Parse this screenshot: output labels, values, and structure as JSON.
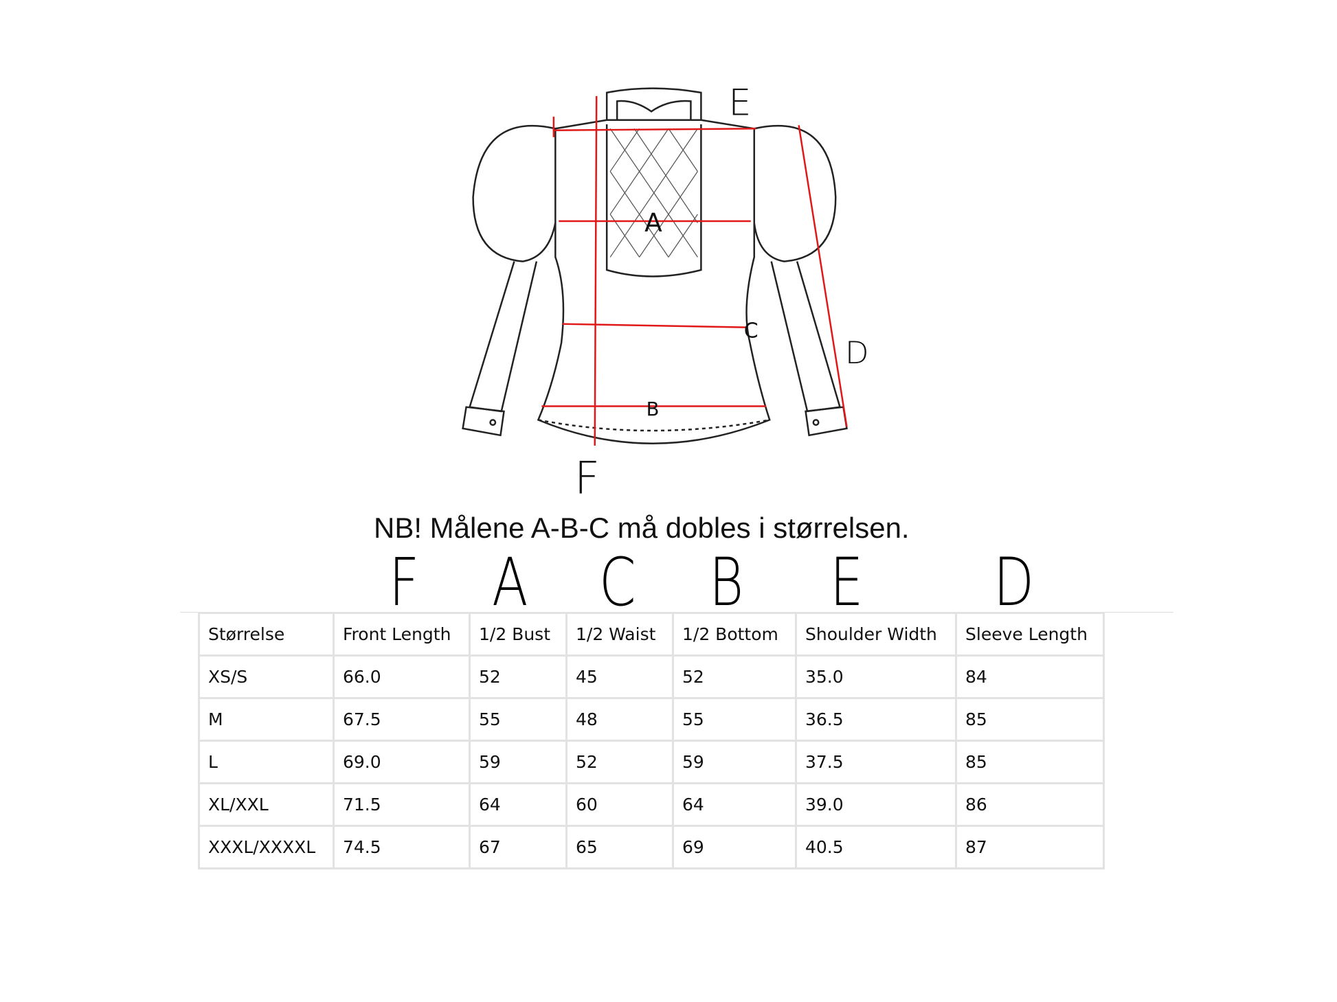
{
  "diagram_labels": {
    "A": "A",
    "B": "B",
    "C": "C",
    "D": "D",
    "E": "E",
    "F": "F"
  },
  "note": "NB! Målene A-B-C må dobles i størrelsen.",
  "column_letters": [
    "F",
    "A",
    "C",
    "B",
    "E",
    "D"
  ],
  "colors": {
    "measure_line": "#e01818",
    "outline": "#222222",
    "table_border": "#e2e2e2"
  },
  "table": {
    "headers": [
      "Størrelse",
      "Front Length",
      "1/2 Bust",
      "1/2 Waist",
      "1/2 Bottom",
      "Shoulder Width",
      "Sleeve Length"
    ],
    "rows": [
      [
        "XS/S",
        "66.0",
        "52",
        "45",
        "52",
        "35.0",
        "84"
      ],
      [
        "M",
        "67.5",
        "55",
        "48",
        "55",
        "36.5",
        "85"
      ],
      [
        "L",
        "69.0",
        "59",
        "52",
        "59",
        "37.5",
        "85"
      ],
      [
        "XL/XXL",
        "71.5",
        "64",
        "60",
        "64",
        "39.0",
        "86"
      ],
      [
        "XXXL/XXXXL",
        "74.5",
        "67",
        "65",
        "69",
        "40.5",
        "87"
      ]
    ]
  }
}
